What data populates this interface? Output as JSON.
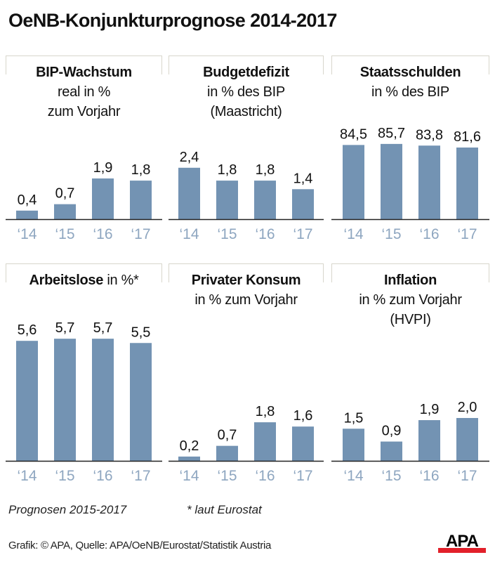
{
  "title": "OeNB-Konjunkturprognose 2014-2017",
  "colors": {
    "bar": "#7393b3",
    "year_label": "#8ea6c0",
    "baseline": "#222222",
    "frame": "#d8d6cc",
    "logo_red": "#e2202a"
  },
  "footnotes": {
    "prognosen": "Prognosen 2015-2017",
    "eurostat": "* laut Eurostat"
  },
  "source": "Grafik: © APA, Quelle: APA/OeNB/Eurostat/Statistik Austria",
  "logo": "APA",
  "chart_data": [
    {
      "type": "bar",
      "title": "BIP-Wachstum",
      "subtitle": [
        "real in %",
        "zum Vorjahr"
      ],
      "categories": [
        "'14",
        "'15",
        "'16",
        "'17"
      ],
      "values": [
        0.4,
        0.7,
        1.9,
        1.8
      ],
      "labels": [
        "0,4",
        "0,7",
        "1,9",
        "1,8"
      ]
    },
    {
      "type": "bar",
      "title": "Budgetdefizit",
      "subtitle": [
        "in % des BIP",
        "(Maastricht)"
      ],
      "categories": [
        "'14",
        "'15",
        "'16",
        "'17"
      ],
      "values": [
        2.4,
        1.8,
        1.8,
        1.4
      ],
      "labels": [
        "2,4",
        "1,8",
        "1,8",
        "1,4"
      ]
    },
    {
      "type": "bar",
      "title": "Staatsschulden",
      "subtitle": [
        "in % des BIP"
      ],
      "categories": [
        "'14",
        "'15",
        "'16",
        "'17"
      ],
      "values": [
        84.5,
        85.7,
        83.8,
        81.6
      ],
      "labels": [
        "84,5",
        "85,7",
        "83,8",
        "81,6"
      ]
    },
    {
      "type": "bar",
      "title": "Arbeitslose",
      "title_suffix": " in %*",
      "subtitle": [],
      "categories": [
        "'14",
        "'15",
        "'16",
        "'17"
      ],
      "values": [
        5.6,
        5.7,
        5.7,
        5.5
      ],
      "labels": [
        "5,6",
        "5,7",
        "5,7",
        "5,5"
      ]
    },
    {
      "type": "bar",
      "title": "Privater Konsum",
      "subtitle": [
        "in % zum Vorjahr"
      ],
      "categories": [
        "'14",
        "'15",
        "'16",
        "'17"
      ],
      "values": [
        0.2,
        0.7,
        1.8,
        1.6
      ],
      "labels": [
        "0,2",
        "0,7",
        "1,8",
        "1,6"
      ]
    },
    {
      "type": "bar",
      "title": "Inflation",
      "subtitle": [
        "in % zum Vorjahr",
        "(HVPI)"
      ],
      "categories": [
        "'14",
        "'15",
        "'16",
        "'17"
      ],
      "values": [
        1.5,
        0.9,
        1.9,
        2.0
      ],
      "labels": [
        "1,5",
        "0,9",
        "1,9",
        "2,0"
      ]
    }
  ]
}
